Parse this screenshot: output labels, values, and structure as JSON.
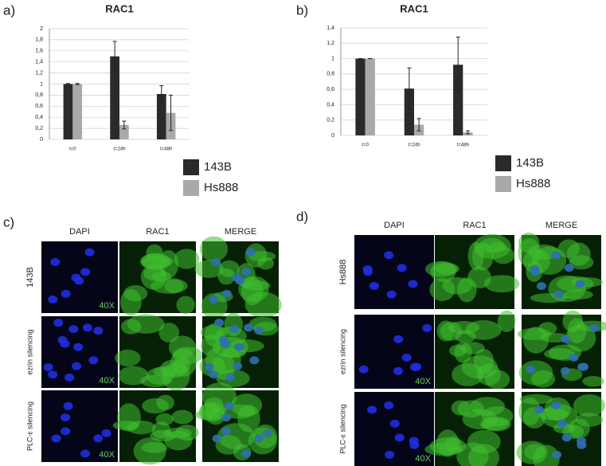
{
  "chart_data": [
    {
      "type": "bar",
      "panel_label": "a)",
      "title": "RAC1",
      "categories": [
        "t=0",
        "t=24h",
        "t=48h"
      ],
      "series": [
        {
          "name": "143B",
          "color": "#2a2a2a",
          "values": [
            1.0,
            1.5,
            0.82
          ],
          "errors": [
            0.01,
            0.27,
            0.15
          ]
        },
        {
          "name": "Hs888",
          "color": "#a9a9a9",
          "values": [
            1.0,
            0.26,
            0.48
          ],
          "errors": [
            0.01,
            0.07,
            0.32
          ]
        }
      ],
      "ylim": [
        0,
        2
      ],
      "yticks": [
        0,
        {
          "value": 0.2,
          "label": "0,2"
        },
        {
          "value": 0.4,
          "label": "0,4"
        },
        {
          "value": 0.6,
          "label": "0,6"
        },
        {
          "value": 0.8,
          "label": "0,8"
        },
        1,
        {
          "value": 1.2,
          "label": "1,2"
        },
        {
          "value": 1.4,
          "label": "1,4"
        },
        {
          "value": 1.6,
          "label": "1,6"
        },
        {
          "value": 1.8,
          "label": "1,8"
        },
        2
      ],
      "grid": true
    },
    {
      "type": "bar",
      "panel_label": "b)",
      "title": "RAC1",
      "categories": [
        "t=0",
        "t=24h",
        "t=48h"
      ],
      "series": [
        {
          "name": "143B",
          "color": "#2a2a2a",
          "values": [
            1.0,
            0.61,
            0.92
          ],
          "errors": [
            0.0,
            0.27,
            0.36
          ]
        },
        {
          "name": "Hs888",
          "color": "#a9a9a9",
          "values": [
            1.0,
            0.14,
            0.04
          ],
          "errors": [
            0.0,
            0.08,
            0.02
          ]
        }
      ],
      "ylim": [
        0,
        1.4
      ],
      "yticks": [
        0,
        {
          "value": 0.2,
          "label": "0,2"
        },
        {
          "value": 0.4,
          "label": "0,4"
        },
        {
          "value": 0.6,
          "label": "0,6"
        },
        {
          "value": 0.8,
          "label": "0,8"
        },
        1,
        {
          "value": 1.2,
          "label": "1,2"
        },
        {
          "value": 1.4,
          "label": "1,4"
        }
      ],
      "grid": true
    }
  ],
  "image_panels": [
    {
      "panel_label": "c)",
      "columns": [
        "DAPI",
        "RAC1",
        "MERGE"
      ],
      "rows": [
        "143B",
        "ezrin silencing",
        "PLC-ε  silencing"
      ],
      "magnification": "40X"
    },
    {
      "panel_label": "d)",
      "columns": [
        "DAPI",
        "RAC1",
        "MERGE"
      ],
      "rows": [
        "Hs888",
        "ezrin silencing",
        "PLC-ε  silencing"
      ],
      "magnification": "40X"
    }
  ]
}
